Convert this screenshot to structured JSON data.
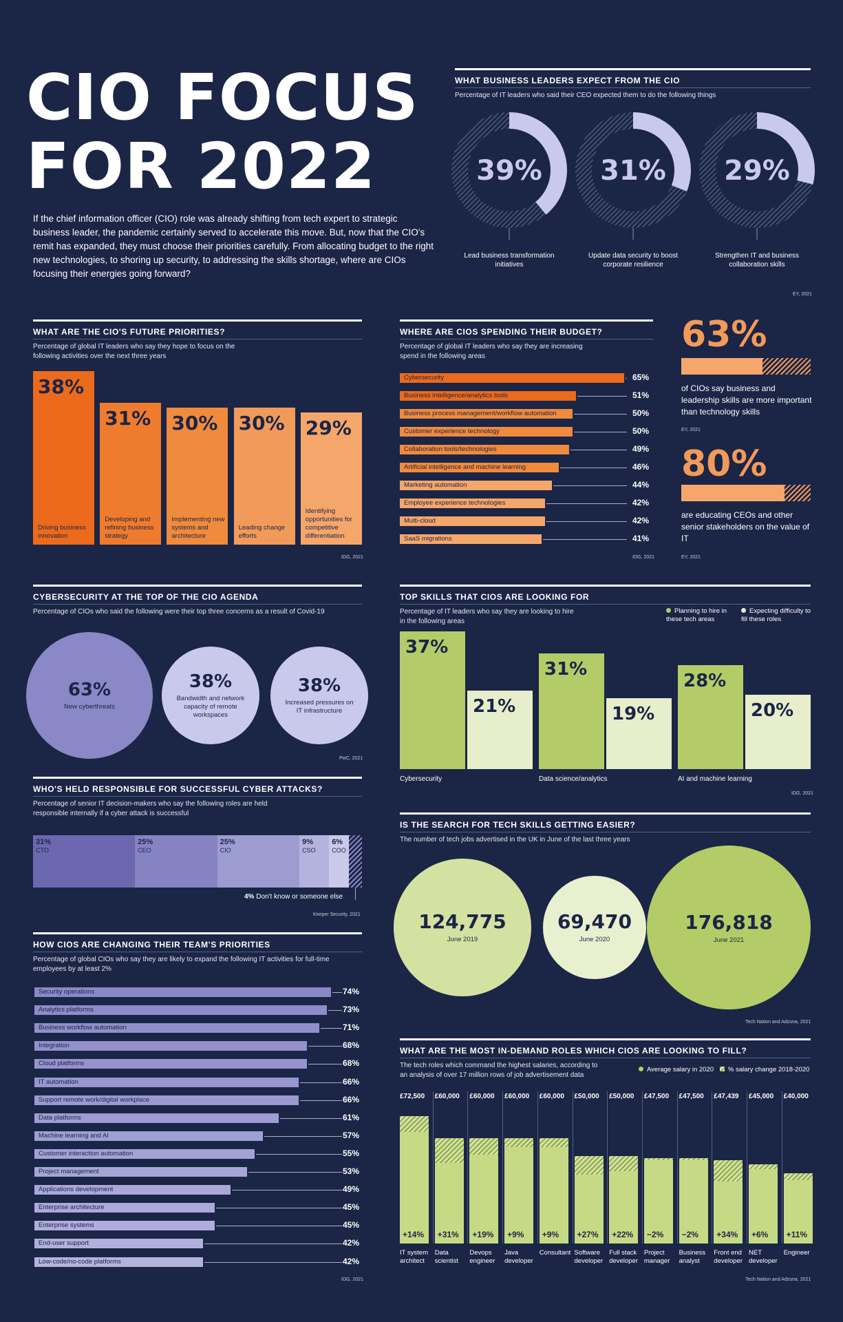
{
  "header": {
    "title_line1": "CIO FOCUS",
    "title_line2": "FOR 2022",
    "intro": "If the chief information officer (CIO) role was already shifting from tech expert to strategic business leader, the pandemic certainly served to accelerate this move. But, now that the CIO's remit has expanded, they must choose their priorities carefully. From allocating budget to the right new technologies, to shoring up security, to addressing the skills shortage, where are CIOs focusing their energies going forward?"
  },
  "expect": {
    "title": "WHAT BUSINESS LEADERS EXPECT FROM THE CIO",
    "subtitle": "Percentage of IT leaders who said their CEO expected them to do the following things",
    "source": "EY, 2021",
    "labels": [
      "39%",
      "31%",
      "29%"
    ],
    "captions": [
      "Lead business transformation initiatives",
      "Update data security to boost corporate resilience",
      "Strengthen IT and business collaboration skills"
    ]
  },
  "priorities": {
    "title": "WHAT ARE THE CIO'S FUTURE PRIORITIES?",
    "subtitle": "Percentage of global IT leaders who say they hope to focus on the following activities over the next three years",
    "source": "IDG, 2021",
    "labels": [
      "38%",
      "31%",
      "30%",
      "30%",
      "29%"
    ],
    "captions": [
      "Driving business innovation",
      "Developing and refining business strategy",
      "Implementing new systems and architecture",
      "Leading change efforts",
      "Identifying opportunities for competitive differentiation"
    ]
  },
  "budget": {
    "title": "WHERE ARE CIOS SPENDING THEIR BUDGET?",
    "subtitle": "Percentage of global IT leaders who say they are increasing spend in the following areas",
    "source": "IDG, 2021",
    "labels": [
      "65%",
      "51%",
      "50%",
      "50%",
      "49%",
      "46%",
      "44%",
      "42%",
      "42%",
      "41%"
    ]
  },
  "side_stats": {
    "stat1_value": "63%",
    "stat1_text": "of CIOs say business and leadership skills are more important than technology skills",
    "stat1_source": "EY, 2021",
    "stat2_value": "80%",
    "stat2_text": "are educating CEOs and other senior stakeholders on the value of IT",
    "stat2_source": "EY, 2021"
  },
  "cyber": {
    "title": "CYBERSECURITY AT THE TOP OF THE CIO AGENDA",
    "subtitle": "Percentage of CIOs who said the following were their top three concerns as a result of Covid-19",
    "source": "PwC, 2021",
    "labels": [
      "63%",
      "38%",
      "38%"
    ],
    "captions": [
      "New cyberthreats",
      "Bandwidth and network capacity of remote workspaces",
      "Increased pressures on IT infrastructure"
    ]
  },
  "skills": {
    "title": "TOP SKILLS THAT CIOS ARE LOOKING FOR",
    "subtitle": "Percentage of IT leaders who say they are looking to hire in the following areas",
    "legend_planning": "Planning to hire in these tech areas",
    "legend_difficulty": "Expecting difficulty to fill these roles",
    "source": "IDG, 2021",
    "labels": [
      "37%",
      "21%",
      "31%",
      "19%",
      "28%",
      "20%"
    ]
  },
  "responsible": {
    "title": "WHO'S HELD RESPONSIBLE FOR SUCCESSFUL CYBER ATTACKS?",
    "subtitle": "Percentage of senior IT decision-makers who say the following roles are held responsible internally if a cyber attack is successful",
    "source": "Keeper Security, 2021",
    "labels": [
      "31%",
      "25%",
      "25%",
      "9%",
      "6%"
    ],
    "other_pct": "4%",
    "other_text": "Don't know or someone else"
  },
  "search": {
    "title": "IS THE SEARCH FOR TECH SKILLS GETTING EASIER?",
    "subtitle": "The number of tech jobs advertised in the UK in June of the last three years",
    "source": "Tech Nation and Adzuna, 2021",
    "labels": [
      "124,775",
      "69,470",
      "176,818"
    ]
  },
  "team": {
    "title": "HOW CIOS ARE CHANGING THEIR TEAM'S PRIORITIES",
    "subtitle": "Percentage of global CIOs who say they are likely to expand the following IT activities for full-time employees by at least 2%",
    "source": "IDG, 2021",
    "labels": [
      "74%",
      "73%",
      "71%",
      "68%",
      "68%",
      "66%",
      "66%",
      "61%",
      "57%",
      "55%",
      "53%",
      "49%",
      "45%",
      "45%",
      "42%",
      "42%"
    ]
  },
  "roles": {
    "title": "WHAT ARE THE MOST IN-DEMAND ROLES WHICH CIOS ARE LOOKING TO FILL?",
    "subtitle": "The tech roles which command the highest salaries, according to an analysis of over 17 million rows of job advertisement data",
    "legend_salary": "Average salary in 2020",
    "legend_change": "% salary change 2018-2020",
    "source": "Tech Nation and Adzuna, 2021",
    "salary_labels": [
      "£72,500",
      "£60,000",
      "£60,000",
      "£60,000",
      "£60,000",
      "£50,000",
      "£50,000",
      "£47,500",
      "£47,500",
      "£47,439",
      "£45,000",
      "£40,000"
    ],
    "change_labels": [
      "+14%",
      "+31%",
      "+19%",
      "+9%",
      "+9%",
      "+27%",
      "+22%",
      "−2%",
      "−2%",
      "+34%",
      "+6%",
      "+11%"
    ]
  },
  "colors": {
    "background": "#1b2546",
    "orange_dark": "#ec6a1c",
    "orange_mid": "#f08a3c",
    "orange_light": "#f5a66b",
    "lavender": "#c9c9ec",
    "purple": "#8a88c7",
    "green": "#b3cc67",
    "green_light": "#e6eecb"
  },
  "chart_data": [
    {
      "type": "pie",
      "title": "WHAT BUSINESS LEADERS EXPECT FROM THE CIO",
      "categories": [
        "Lead business transformation initiatives",
        "Update data security to boost corporate resilience",
        "Strengthen IT and business collaboration skills"
      ],
      "values": [
        39,
        31,
        29
      ]
    },
    {
      "type": "bar",
      "title": "WHAT ARE THE CIO'S FUTURE PRIORITIES?",
      "categories": [
        "Driving business innovation",
        "Developing and refining business strategy",
        "Implementing new systems and architecture",
        "Leading change efforts",
        "Identifying opportunities for competitive differentiation"
      ],
      "values": [
        38,
        31,
        30,
        30,
        29
      ]
    },
    {
      "type": "bar",
      "title": "WHERE ARE CIOS SPENDING THEIR BUDGET?",
      "categories": [
        "Cybersecurity",
        "Business intelligence/analytics tools",
        "Business process management/workflow automation",
        "Customer experience technology",
        "Collaboration tools/technologies",
        "Artificial intelligence and machine learning",
        "Marketing automation",
        "Employee experience technologies",
        "Multi-cloud",
        "SaaS migrations"
      ],
      "values": [
        65,
        51,
        50,
        50,
        49,
        46,
        44,
        42,
        42,
        41
      ]
    },
    {
      "type": "bar",
      "title": "",
      "categories": [
        "of CIOs say business and leadership skills are more important than technology skills",
        "are educating CEOs and other senior stakeholders on the value of IT"
      ],
      "values": [
        63,
        80
      ]
    },
    {
      "type": "scatter",
      "title": "CYBERSECURITY AT THE TOP OF THE CIO AGENDA",
      "categories": [
        "New cyberthreats",
        "Bandwidth and network capacity of remote workspaces",
        "Increased pressures on IT infrastructure"
      ],
      "values": [
        63,
        38,
        38
      ]
    },
    {
      "type": "bar",
      "title": "TOP SKILLS THAT CIOS ARE LOOKING FOR",
      "categories": [
        "Cybersecurity",
        "Data science/analytics",
        "AI and machine learning"
      ],
      "series": [
        {
          "name": "Planning to hire in these tech areas",
          "values": [
            37,
            31,
            28
          ]
        },
        {
          "name": "Expecting difficulty to fill these roles",
          "values": [
            21,
            19,
            20
          ]
        }
      ],
      "legend": "top-right"
    },
    {
      "type": "bar",
      "title": "WHO'S HELD RESPONSIBLE FOR SUCCESSFUL CYBER ATTACKS?",
      "categories": [
        "CTO",
        "CEO",
        "CIO",
        "CSO",
        "COO",
        "Don't know or someone else"
      ],
      "values": [
        31,
        25,
        25,
        9,
        6,
        4
      ]
    },
    {
      "type": "scatter",
      "title": "IS THE SEARCH FOR TECH SKILLS GETTING EASIER?",
      "categories": [
        "June 2019",
        "June 2020",
        "June 2021"
      ],
      "values": [
        124775,
        69470,
        176818
      ]
    },
    {
      "type": "bar",
      "title": "HOW CIOS ARE CHANGING THEIR TEAM'S PRIORITIES",
      "categories": [
        "Security operations",
        "Analytics platforms",
        "Business workflow automation",
        "Integration",
        "Cloud platforms",
        "IT automation",
        "Support remote work/digital workplace",
        "Data platforms",
        "Machine learning and AI",
        "Customer interaction automation",
        "Project management",
        "Applications development",
        "Enterprise architecture",
        "Enterprise systems",
        "End-user support",
        "Low-code/no-code platforms"
      ],
      "values": [
        74,
        73,
        71,
        68,
        68,
        66,
        66,
        61,
        57,
        55,
        53,
        49,
        45,
        45,
        42,
        42
      ]
    },
    {
      "type": "bar",
      "title": "WHAT ARE THE MOST IN-DEMAND ROLES WHICH CIOS ARE LOOKING TO FILL?",
      "categories": [
        "IT system architect",
        "Data scientist",
        "Devops engineer",
        "Java developer",
        "Consultant",
        "Software developer",
        "Full stack developer",
        "Project manager",
        "Business analyst",
        "Front end developer",
        "NET developer",
        "Engineer"
      ],
      "series": [
        {
          "name": "Average salary in 2020",
          "values": [
            72500,
            60000,
            60000,
            60000,
            60000,
            50000,
            50000,
            47500,
            47500,
            47439,
            45000,
            40000
          ]
        },
        {
          "name": "% salary change 2018-2020",
          "values": [
            14,
            31,
            19,
            9,
            9,
            27,
            22,
            -2,
            -2,
            34,
            6,
            11
          ]
        }
      ],
      "legend": "top-right"
    }
  ]
}
